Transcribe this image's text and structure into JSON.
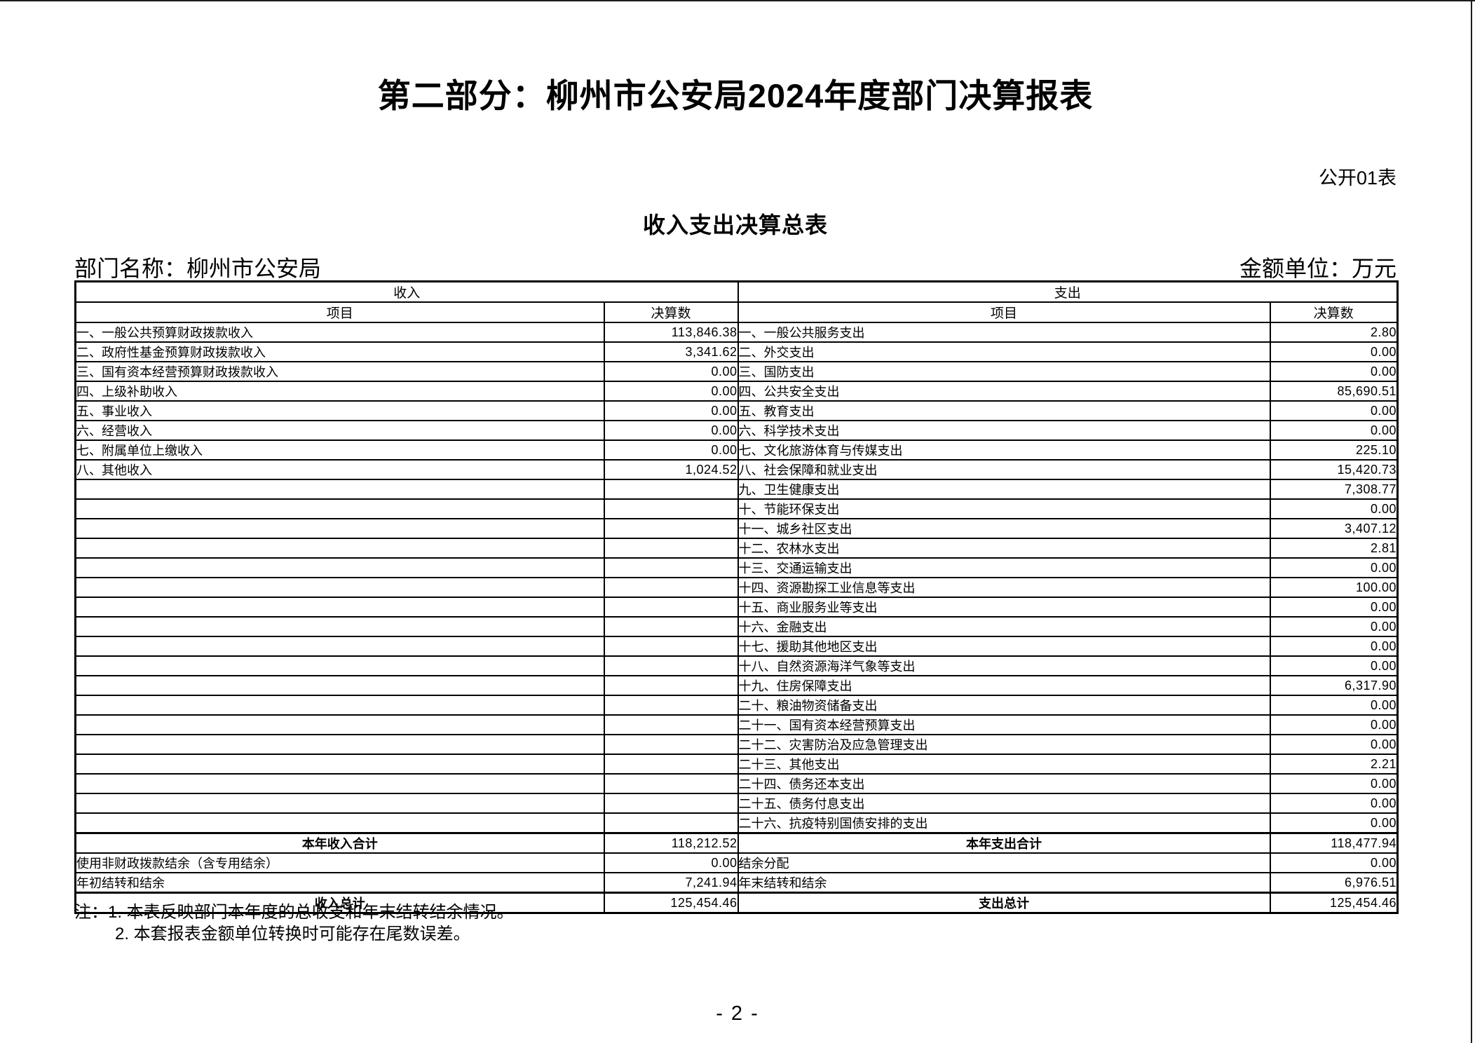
{
  "header": {
    "title": "第二部分：柳州市公安局2024年度部门决算报表",
    "table_code": "公开01表",
    "table_title": "收入支出决算总表",
    "department": "部门名称：柳州市公安局",
    "unit": "金额单位：万元"
  },
  "table": {
    "sections": [
      "收入",
      "支出"
    ],
    "columns": [
      "项目",
      "决算数",
      "项目",
      "决算数"
    ],
    "income_rows": [
      {
        "item": "一、一般公共预算财政拨款收入",
        "amount": "113,846.38"
      },
      {
        "item": "二、政府性基金预算财政拨款收入",
        "amount": "3,341.62"
      },
      {
        "item": "三、国有资本经营预算财政拨款收入",
        "amount": "0.00"
      },
      {
        "item": "四、上级补助收入",
        "amount": "0.00"
      },
      {
        "item": "五、事业收入",
        "amount": "0.00"
      },
      {
        "item": "六、经营收入",
        "amount": "0.00"
      },
      {
        "item": "七、附属单位上缴收入",
        "amount": "0.00"
      },
      {
        "item": "八、其他收入",
        "amount": "1,024.52"
      }
    ],
    "expense_rows": [
      {
        "item": "一、一般公共服务支出",
        "amount": "2.80"
      },
      {
        "item": "二、外交支出",
        "amount": "0.00"
      },
      {
        "item": "三、国防支出",
        "amount": "0.00"
      },
      {
        "item": "四、公共安全支出",
        "amount": "85,690.51"
      },
      {
        "item": "五、教育支出",
        "amount": "0.00"
      },
      {
        "item": "六、科学技术支出",
        "amount": "0.00"
      },
      {
        "item": "七、文化旅游体育与传媒支出",
        "amount": "225.10"
      },
      {
        "item": "八、社会保障和就业支出",
        "amount": "15,420.73"
      },
      {
        "item": "九、卫生健康支出",
        "amount": "7,308.77"
      },
      {
        "item": "十、节能环保支出",
        "amount": "0.00"
      },
      {
        "item": "十一、城乡社区支出",
        "amount": "3,407.12"
      },
      {
        "item": "十二、农林水支出",
        "amount": "2.81"
      },
      {
        "item": "十三、交通运输支出",
        "amount": "0.00"
      },
      {
        "item": "十四、资源勘探工业信息等支出",
        "amount": "100.00"
      },
      {
        "item": "十五、商业服务业等支出",
        "amount": "0.00"
      },
      {
        "item": "十六、金融支出",
        "amount": "0.00"
      },
      {
        "item": "十七、援助其他地区支出",
        "amount": "0.00"
      },
      {
        "item": "十八、自然资源海洋气象等支出",
        "amount": "0.00"
      },
      {
        "item": "十九、住房保障支出",
        "amount": "6,317.90"
      },
      {
        "item": "二十、粮油物资储备支出",
        "amount": "0.00"
      },
      {
        "item": "二十一、国有资本经营预算支出",
        "amount": "0.00"
      },
      {
        "item": "二十二、灾害防治及应急管理支出",
        "amount": "0.00"
      },
      {
        "item": "二十三、其他支出",
        "amount": "2.21"
      },
      {
        "item": "二十四、债务还本支出",
        "amount": "0.00"
      },
      {
        "item": "二十五、债务付息支出",
        "amount": "0.00"
      },
      {
        "item": "二十六、抗疫特别国债安排的支出",
        "amount": "0.00"
      }
    ],
    "summary_rows": [
      {
        "left_item": "本年收入合计",
        "left_amount": "118,212.52",
        "right_item": "本年支出合计",
        "right_amount": "118,477.94",
        "emphasis": true
      },
      {
        "left_item": "使用非财政拨款结余（含专用结余）",
        "left_amount": "0.00",
        "right_item": "结余分配",
        "right_amount": "0.00",
        "emphasis": false
      },
      {
        "left_item": "年初结转和结余",
        "left_amount": "7,241.94",
        "right_item": "年末结转和结余",
        "right_amount": "6,976.51",
        "emphasis": false
      },
      {
        "left_item": "收入总计",
        "left_amount": "125,454.46",
        "right_item": "支出总计",
        "right_amount": "125,454.46",
        "emphasis": true
      }
    ]
  },
  "notes": [
    "注：1. 本表反映部门本年度的总收支和年末结转结余情况。",
    "2. 本套报表金额单位转换时可能存在尾数误差。"
  ],
  "footer": {
    "page_number": "- 2 -"
  }
}
